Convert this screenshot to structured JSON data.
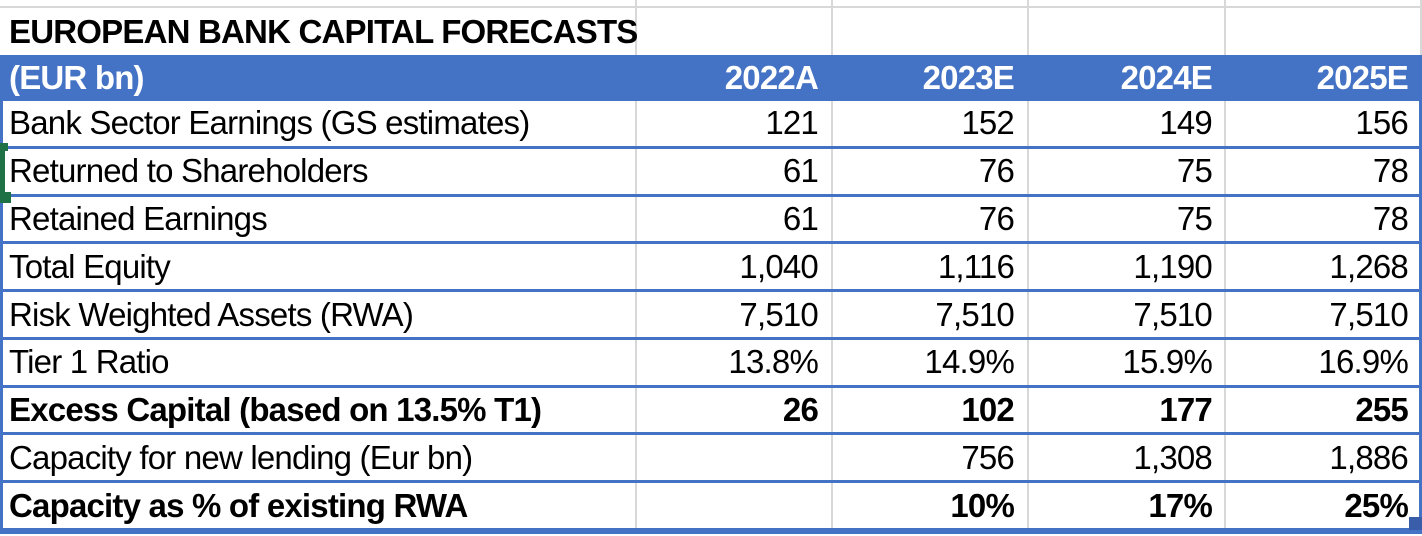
{
  "table": {
    "title": "EUROPEAN BANK CAPITAL FORECASTS",
    "unit_label": "(EUR bn)",
    "columns": [
      "2022A",
      "2023E",
      "2024E",
      "2025E"
    ],
    "rows": [
      {
        "label": "Bank Sector Earnings (GS estimates)",
        "values": [
          "121",
          "152",
          "149",
          "156"
        ],
        "bold": false
      },
      {
        "label": "Returned to Shareholders",
        "values": [
          "61",
          "76",
          "75",
          "78"
        ],
        "bold": false
      },
      {
        "label": "Retained Earnings",
        "values": [
          "61",
          "76",
          "75",
          "78"
        ],
        "bold": false
      },
      {
        "label": "Total Equity",
        "values": [
          "1,040",
          "1,116",
          "1,190",
          "1,268"
        ],
        "bold": false
      },
      {
        "label": "Risk Weighted Assets (RWA)",
        "values": [
          "7,510",
          "7,510",
          "7,510",
          "7,510"
        ],
        "bold": false
      },
      {
        "label": "Tier 1 Ratio",
        "values": [
          "13.8%",
          "14.9%",
          "15.9%",
          "16.9%"
        ],
        "bold": false
      },
      {
        "label": "Excess Capital (based on 13.5% T1)",
        "values": [
          "26",
          "102",
          "177",
          "255"
        ],
        "bold": true
      },
      {
        "label": "Capacity for new lending (Eur bn)",
        "values": [
          "",
          "756",
          "1,308",
          "1,886"
        ],
        "bold": false
      },
      {
        "label": "Capacity as % of existing RWA",
        "values": [
          "",
          "10%",
          "17%",
          "25%"
        ],
        "bold": true
      }
    ]
  },
  "colors": {
    "header_fill": "#4472c4",
    "row_border": "#4472c4",
    "gridline": "#d8d8d8",
    "selection_green": "#1e7145",
    "fill_handle_blue": "#3a5da9"
  }
}
